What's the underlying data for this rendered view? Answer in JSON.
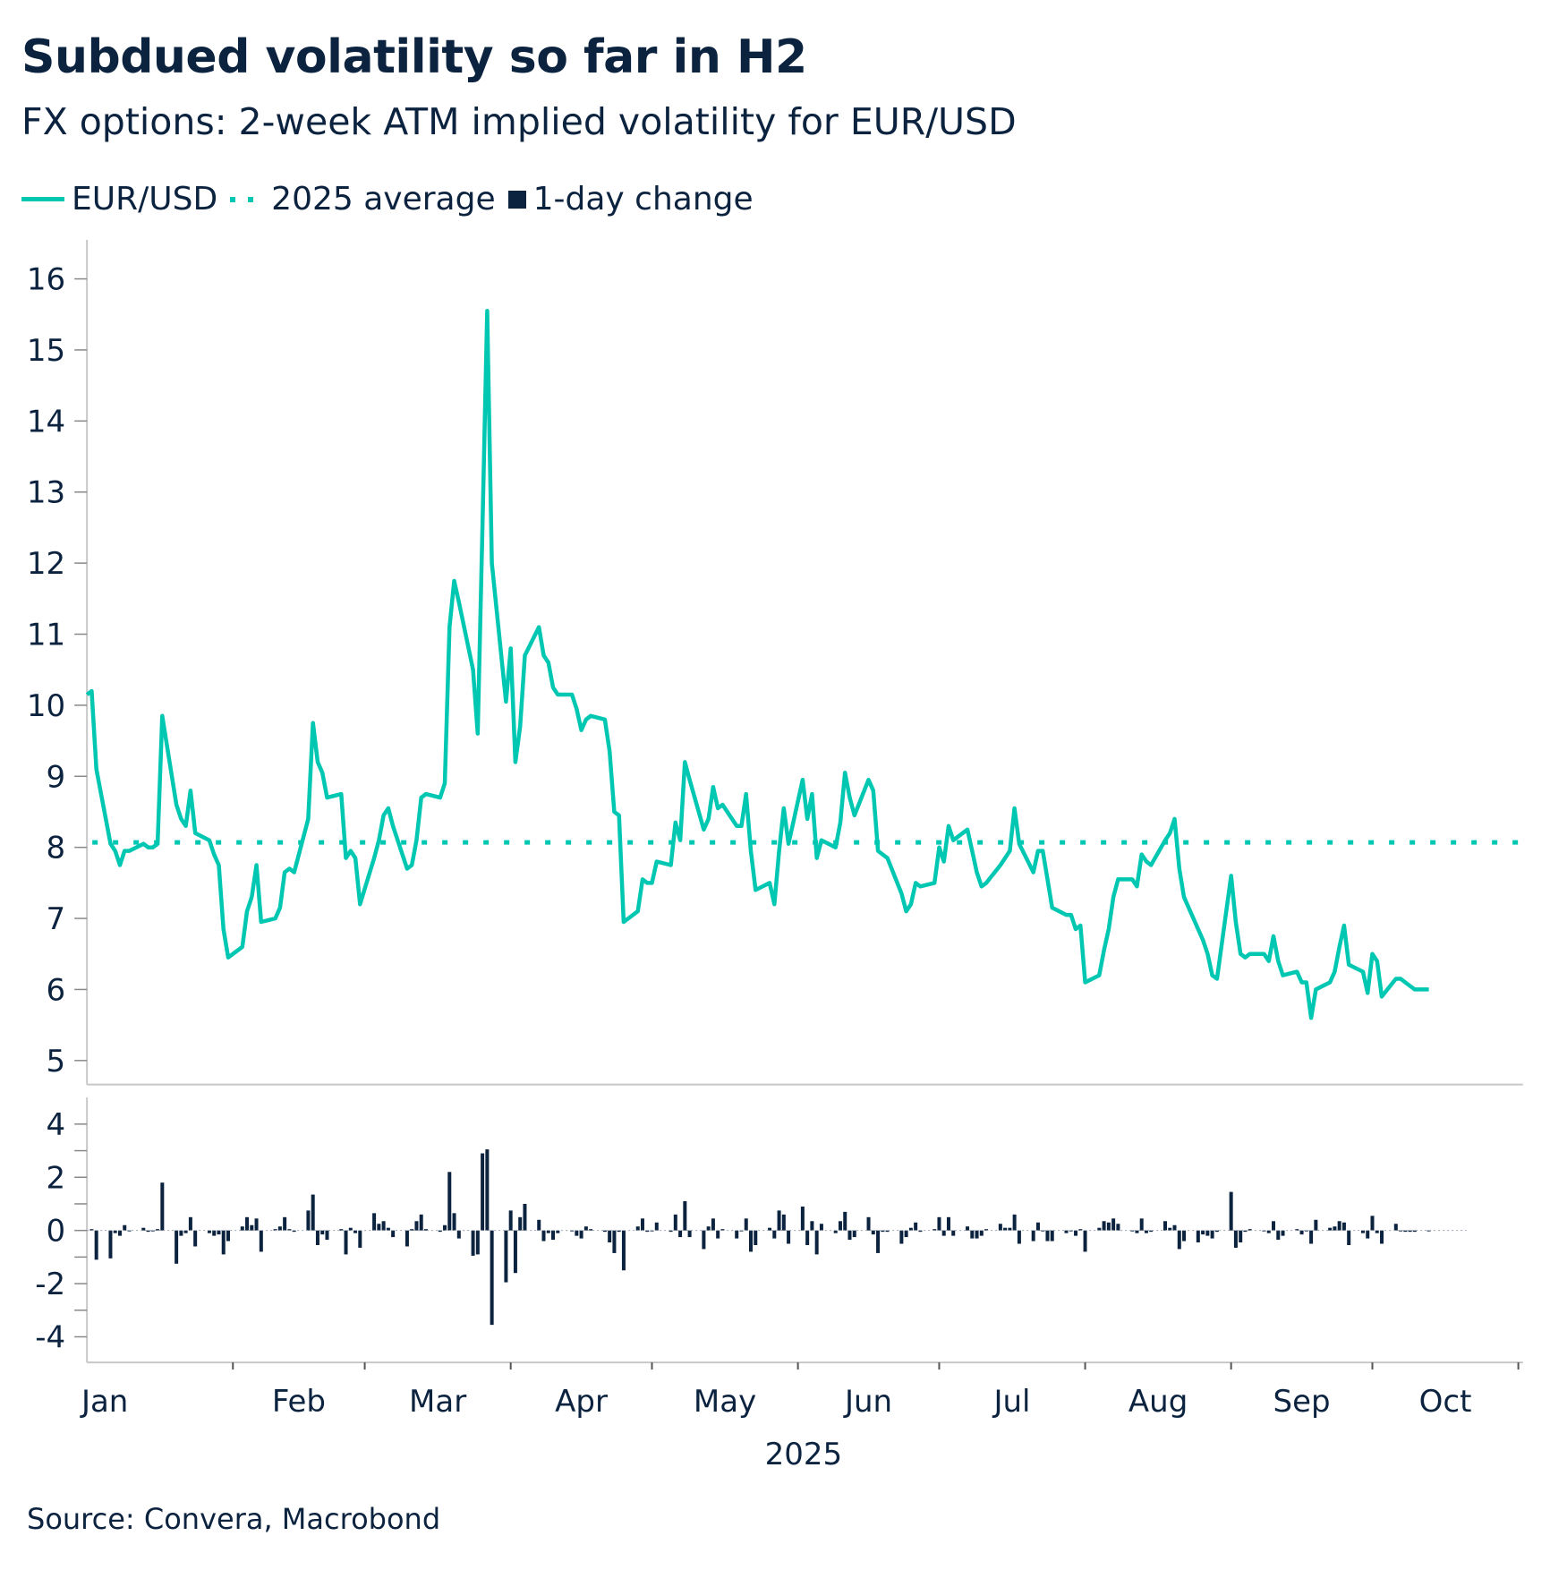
{
  "title": "Subdued volatility so far in H2",
  "subtitle": "FX options: 2-week ATM implied volatility for EUR/USD",
  "legend": {
    "line": "EUR/USD",
    "average": "2025 average",
    "bars": "1-day change"
  },
  "source": "Source: Convera, Macrobond",
  "colors": {
    "line": "#00c7b1",
    "bars": "#0c2340",
    "text": "#0c2340",
    "axis": "#c8c8c8"
  },
  "chart_data": [
    {
      "type": "line",
      "title": "Subdued volatility so far in H2",
      "subtitle": "FX options: 2-week ATM implied volatility for EUR/USD",
      "xlabel": "2025",
      "ylabel": "",
      "ylim": [
        4.7,
        16.3
      ],
      "yticks": [
        5,
        6,
        7,
        8,
        9,
        10,
        11,
        12,
        13,
        14,
        15,
        16
      ],
      "xticks": [
        "Jan",
        "Feb",
        "Mar",
        "Apr",
        "May",
        "Jun",
        "Jul",
        "Aug",
        "Sep",
        "Oct"
      ],
      "x_start": "2025-01-01",
      "x_end_axis": "2025-11-01",
      "legend_position": "top-left",
      "grid": false,
      "average": 8.07,
      "series": [
        {
          "name": "EUR/USD",
          "day_of_year": [
            1,
            2,
            3,
            6,
            7,
            8,
            9,
            10,
            13,
            14,
            15,
            16,
            17,
            20,
            21,
            22,
            23,
            24,
            27,
            28,
            29,
            30,
            31,
            34,
            35,
            36,
            37,
            38,
            41,
            42,
            43,
            44,
            45,
            48,
            49,
            50,
            51,
            52,
            55,
            56,
            57,
            58,
            59,
            62,
            63,
            64,
            65,
            66,
            69,
            70,
            71,
            72,
            73,
            76,
            77,
            78,
            79,
            80,
            83,
            84,
            85,
            86,
            87,
            90,
            91,
            92,
            93,
            94,
            97,
            98,
            99,
            100,
            101,
            104,
            105,
            106,
            107,
            108,
            111,
            112,
            113,
            114,
            115,
            118,
            119,
            120,
            121,
            122,
            125,
            126,
            127,
            128,
            129,
            132,
            133,
            134,
            135,
            136,
            139,
            140,
            141,
            142,
            143,
            146,
            147,
            148,
            149,
            150,
            153,
            154,
            155,
            156,
            157,
            160,
            161,
            162,
            163,
            164,
            167,
            168,
            169,
            170,
            171,
            174,
            175,
            176,
            177,
            178,
            181,
            182,
            183,
            184,
            185,
            188,
            189,
            190,
            191,
            192,
            195,
            196,
            197,
            198,
            199,
            202,
            203,
            204,
            205,
            206,
            209,
            210,
            211,
            212,
            213,
            216,
            217,
            218,
            219,
            220,
            223,
            224,
            225,
            226,
            227,
            230,
            231,
            232,
            233,
            234,
            237,
            238,
            239,
            240,
            241,
            244,
            245,
            246,
            247,
            248,
            251,
            252,
            253,
            254,
            255,
            258,
            259,
            260,
            261,
            262,
            265,
            266,
            267,
            268,
            269,
            272,
            273,
            274,
            275,
            276,
            279,
            280,
            281,
            282,
            283,
            286,
            287,
            288,
            289,
            290,
            293,
            294
          ],
          "values": [
            10.15,
            10.2,
            9.1,
            8.05,
            7.95,
            7.75,
            7.95,
            7.95,
            8.05,
            8.0,
            8.0,
            8.05,
            9.85,
            8.6,
            8.4,
            8.3,
            8.8,
            8.2,
            8.1,
            7.9,
            7.75,
            6.85,
            6.45,
            6.6,
            7.1,
            7.3,
            7.75,
            6.95,
            7.0,
            7.15,
            7.65,
            7.7,
            7.65,
            8.4,
            9.75,
            9.2,
            9.05,
            8.7,
            8.75,
            7.85,
            7.95,
            7.85,
            7.2,
            7.85,
            8.1,
            8.45,
            8.55,
            8.3,
            7.7,
            7.75,
            8.1,
            8.7,
            8.75,
            8.7,
            8.9,
            11.1,
            11.75,
            11.45,
            10.5,
            9.6,
            12.5,
            15.55,
            12.0,
            10.05,
            10.8,
            9.2,
            9.7,
            10.7,
            11.1,
            10.7,
            10.6,
            10.25,
            10.15,
            10.15,
            9.95,
            9.65,
            9.8,
            9.85,
            9.8,
            9.35,
            8.5,
            8.45,
            6.95,
            7.1,
            7.55,
            7.5,
            7.5,
            7.8,
            7.75,
            8.35,
            8.1,
            9.2,
            8.95,
            8.25,
            8.4,
            8.85,
            8.55,
            8.6,
            8.3,
            8.3,
            8.75,
            7.95,
            7.4,
            7.5,
            7.2,
            7.95,
            8.55,
            8.05,
            8.95,
            8.4,
            8.75,
            7.85,
            8.1,
            8.0,
            8.35,
            9.05,
            8.7,
            8.45,
            8.95,
            8.8,
            7.95,
            7.9,
            7.85,
            7.35,
            7.1,
            7.2,
            7.5,
            7.45,
            7.5,
            8.0,
            7.8,
            8.3,
            8.1,
            8.25,
            7.95,
            7.65,
            7.45,
            7.5,
            7.75,
            7.85,
            7.95,
            8.55,
            8.05,
            7.65,
            7.95,
            7.95,
            7.55,
            7.15,
            7.05,
            7.05,
            6.85,
            6.9,
            6.1,
            6.2,
            6.55,
            6.85,
            7.3,
            7.55,
            7.55,
            7.45,
            7.9,
            7.8,
            7.75,
            8.1,
            8.2,
            8.4,
            7.7,
            7.3,
            6.85,
            6.7,
            6.5,
            6.2,
            6.15,
            7.6,
            6.95,
            6.5,
            6.45,
            6.5,
            6.5,
            6.4,
            6.75,
            6.4,
            6.2,
            6.25,
            6.1,
            6.1,
            5.6,
            6.0,
            6.1,
            6.25,
            6.6,
            6.9,
            6.35,
            6.25,
            5.95,
            6.5,
            6.4,
            5.9,
            6.15,
            6.15,
            6.1,
            6.05,
            6.0,
            6.0
          ]
        }
      ]
    },
    {
      "type": "bar",
      "title": "1-day change",
      "ylim": [
        -4.8,
        5.0
      ],
      "yticks": [
        -4,
        -2,
        0,
        2,
        4
      ],
      "series": [
        {
          "name": "1-day change",
          "derived_from": "EUR/USD",
          "note": "day-over-day difference of the EUR/USD series"
        }
      ]
    }
  ]
}
